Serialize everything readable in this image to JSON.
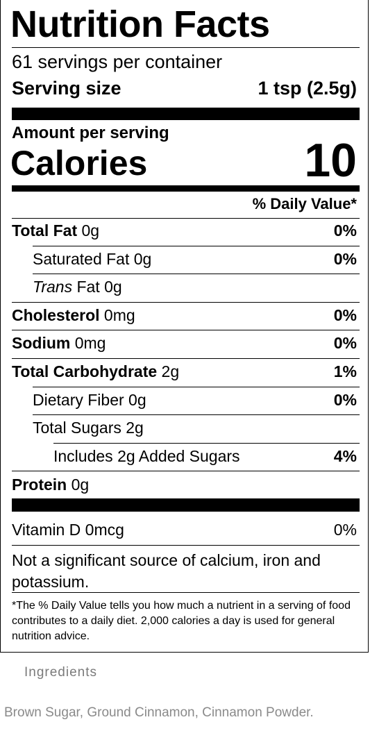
{
  "label": {
    "title": "Nutrition Facts",
    "servings_per_container": "61 servings per container",
    "serving_size_label": "Serving size",
    "serving_size_value": "1 tsp (2.5g)",
    "amount_per_serving": "Amount per serving",
    "calories_label": "Calories",
    "calories_value": "10",
    "daily_value_header": "% Daily Value*",
    "rows": [
      {
        "name": "Total Fat",
        "amount": "0g",
        "pct": "0%"
      },
      {
        "name": "Saturated Fat",
        "amount": "0g",
        "pct": "0%"
      },
      {
        "name": "Trans",
        "name_rest": "Fat",
        "amount": "0g",
        "pct": ""
      },
      {
        "name": "Cholesterol",
        "amount": "0mg",
        "pct": "0%"
      },
      {
        "name": "Sodium",
        "amount": "0mg",
        "pct": "0%"
      },
      {
        "name": "Total Carbohydrate",
        "amount": "2g",
        "pct": "1%"
      },
      {
        "name": "Dietary Fiber",
        "amount": "0g",
        "pct": "0%"
      },
      {
        "name": "Total Sugars",
        "amount": "2g",
        "pct": ""
      },
      {
        "name": "Includes",
        "amount": "2g",
        "name_rest": "Added Sugars",
        "pct": "4%"
      },
      {
        "name": "Protein",
        "amount": "0g",
        "pct": ""
      }
    ],
    "vitamin_d": {
      "name": "Vitamin D",
      "amount": "0mcg",
      "pct": "0%"
    },
    "not_significant": "Not a significant source of calcium, iron and potassium.",
    "footnote": "*The % Daily Value tells you how much a nutrient in a serving of food contributes to a daily diet. 2,000 calories a day is used for general nutrition advice."
  },
  "ingredients": {
    "heading": "Ingredients",
    "text": "Brown Sugar, Ground Cinnamon, Cinnamon Powder."
  }
}
